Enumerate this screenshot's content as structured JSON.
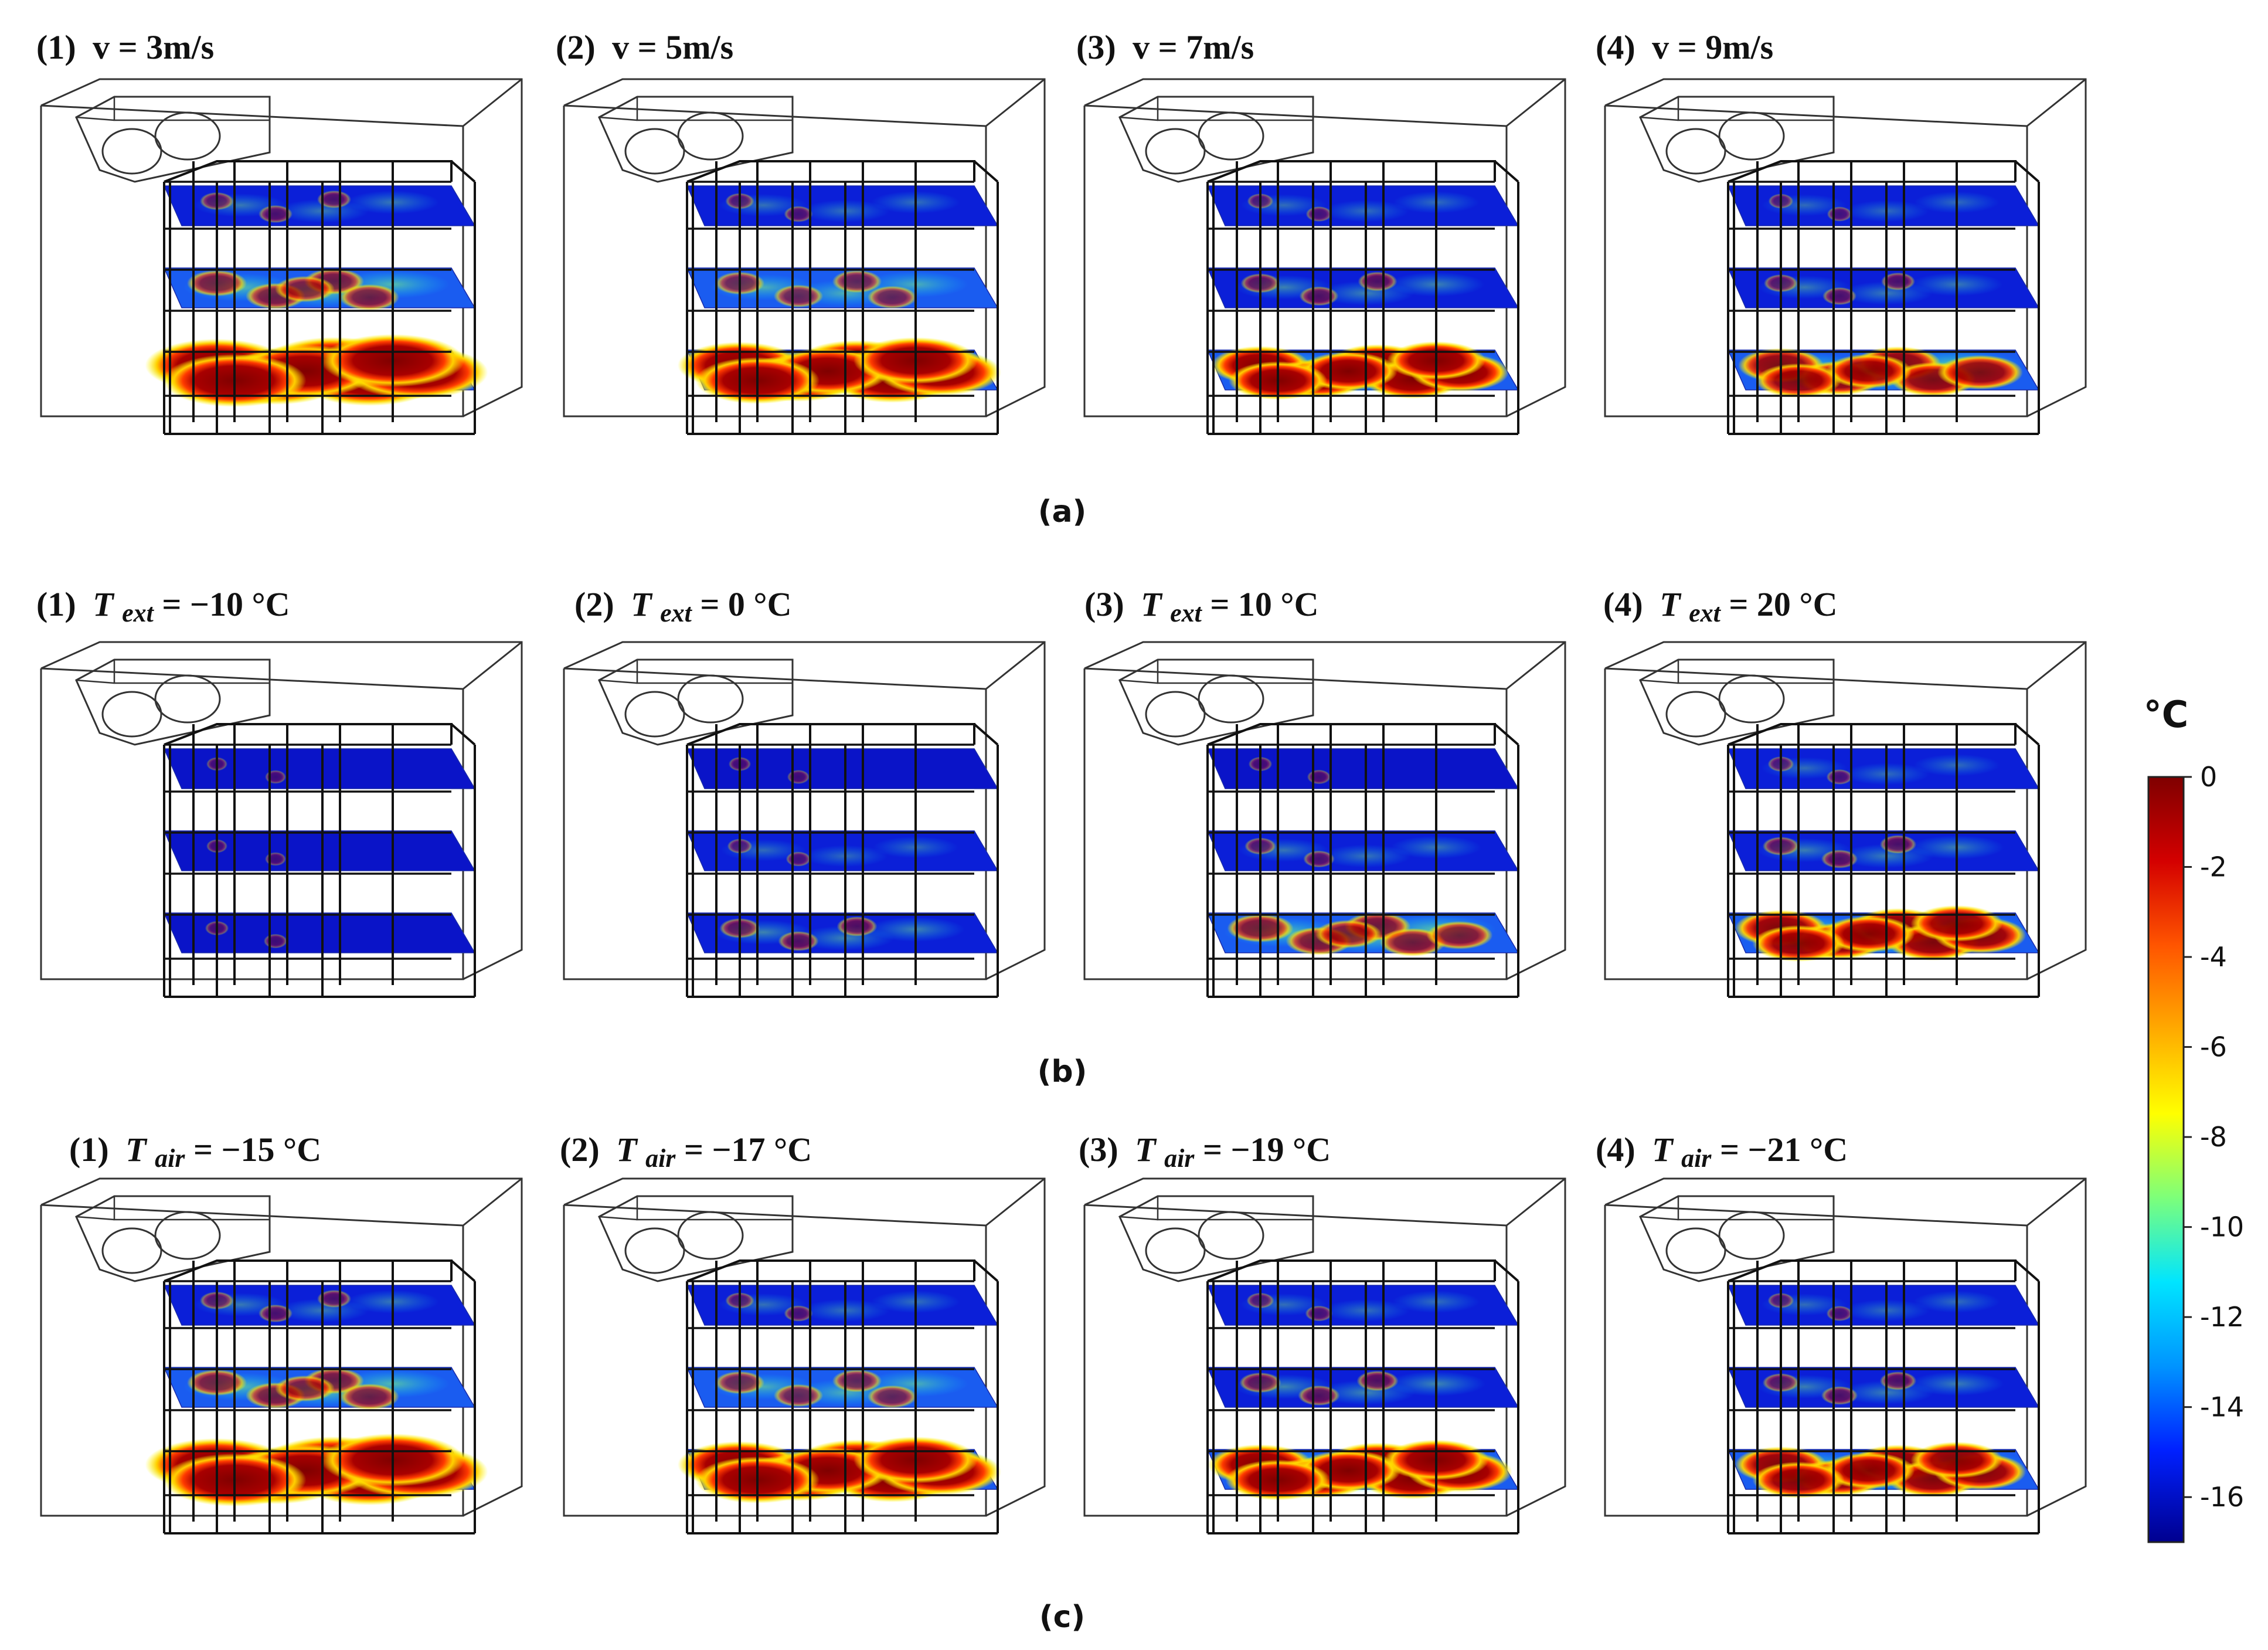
{
  "figure": {
    "rows": [
      {
        "caption": "(a)",
        "panels": [
          {
            "num": "(1)",
            "var": "v",
            "sub": "",
            "value": "= 3m/s",
            "frac": [
              0.1,
              0.3,
              0.95
            ]
          },
          {
            "num": "(2)",
            "var": "v",
            "sub": "",
            "value": "= 5m/s",
            "frac": [
              0.06,
              0.22,
              0.8
            ]
          },
          {
            "num": "(3)",
            "var": "v",
            "sub": "",
            "value": "= 7m/s",
            "frac": [
              0.04,
              0.14,
              0.6
            ]
          },
          {
            "num": "(4)",
            "var": "v",
            "sub": "",
            "value": "= 9m/s",
            "frac": [
              0.03,
              0.1,
              0.5
            ]
          }
        ]
      },
      {
        "caption": "(b)",
        "panels": [
          {
            "num": "(1)",
            "var": "T",
            "sub": "ext",
            "value": "= −10 °C",
            "frac": [
              0.0,
              0.0,
              0.02
            ]
          },
          {
            "num": "(2)",
            "var": "T",
            "sub": "ext",
            "value": "= 0 °C",
            "frac": [
              0.01,
              0.03,
              0.15
            ]
          },
          {
            "num": "(3)",
            "var": "T",
            "sub": "ext",
            "value": "= 10 °C",
            "frac": [
              0.02,
              0.08,
              0.35
            ]
          },
          {
            "num": "(4)",
            "var": "T",
            "sub": "ext",
            "value": "= 20 °C",
            "frac": [
              0.04,
              0.12,
              0.55
            ]
          }
        ]
      },
      {
        "caption": "(c)",
        "panels": [
          {
            "num": "(1)",
            "var": "T",
            "sub": "air",
            "value": "= −15 °C",
            "frac": [
              0.1,
              0.3,
              0.95
            ]
          },
          {
            "num": "(2)",
            "var": "T",
            "sub": "air",
            "value": "= −17 °C",
            "frac": [
              0.06,
              0.22,
              0.8
            ]
          },
          {
            "num": "(3)",
            "var": "T",
            "sub": "air",
            "value": "= −19 °C",
            "frac": [
              0.05,
              0.16,
              0.65
            ]
          },
          {
            "num": "(4)",
            "var": "T",
            "sub": "air",
            "value": "= −21 °C",
            "frac": [
              0.04,
              0.12,
              0.55
            ]
          }
        ]
      }
    ],
    "colorbar": {
      "title": "°C",
      "ticks": [
        "0",
        "-2",
        "-4",
        "-6",
        "-8",
        "-10",
        "-12",
        "-14",
        "-16"
      ],
      "min": -17,
      "max": 0,
      "colors": [
        "#7f0000",
        "#d40000",
        "#ff5500",
        "#ffaa00",
        "#ffff00",
        "#7dff7a",
        "#00e5ff",
        "#0094ff",
        "#0020ff",
        "#00008f"
      ]
    }
  }
}
